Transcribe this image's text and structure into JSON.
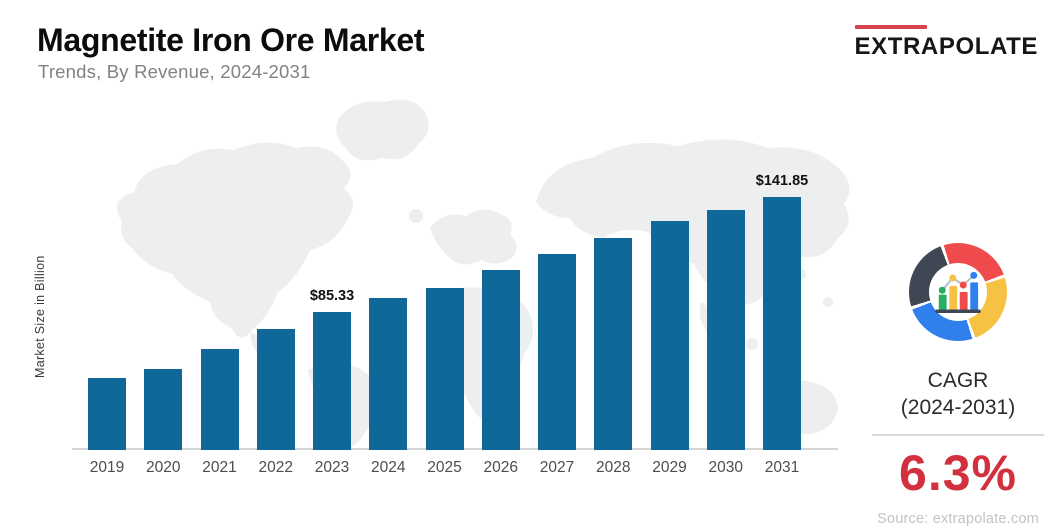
{
  "header": {
    "title": "Magnetite Iron Ore Market",
    "subtitle": "Trends, By Revenue, 2024-2031",
    "logo_text": "EXTRAPOLATE"
  },
  "chart_data": {
    "type": "bar",
    "title": "Magnetite Iron Ore Market",
    "xlabel": "",
    "ylabel": "Market Size in Billion",
    "categories": [
      "2019",
      "2020",
      "2021",
      "2022",
      "2023",
      "2024",
      "2025",
      "2026",
      "2027",
      "2028",
      "2029",
      "2030",
      "2031"
    ],
    "values": [
      52.8,
      57.2,
      67.0,
      76.8,
      85.33,
      92.0,
      96.9,
      105.7,
      113.5,
      121.4,
      129.7,
      135.1,
      141.85
    ],
    "value_labels": [
      "",
      "",
      "",
      "",
      "$85.33",
      "",
      "",
      "",
      "",
      "",
      "",
      "",
      "$141.85"
    ],
    "ylim": [
      17.5,
      150
    ],
    "grid": false,
    "legend": null,
    "bar_color": "#10689a"
  },
  "side_panel": {
    "cagr_label": "CAGR",
    "cagr_period": "(2024-2031)",
    "cagr_value": "6.3%",
    "source": "Source: extrapolate.com"
  },
  "icons": {
    "donut_chart_icon": "multicolor donut ring with mini bar-and-line chart inside",
    "segment_colors": [
      "#ef4b4c",
      "#f5c243",
      "#2f80ed",
      "#3e4753"
    ]
  },
  "theme": {
    "bar_color": "#10689a",
    "accent_red": "#d2303f",
    "logo_red": "#d8434e",
    "seg_red": "#ef4b4c",
    "seg_yellow": "#f5c243",
    "seg_blue": "#2f80ed",
    "seg_dark": "#3e4753",
    "mini_green": "#27ae60",
    "map_fill": "#eceef0",
    "axis_gray": "#d6d6d6"
  }
}
